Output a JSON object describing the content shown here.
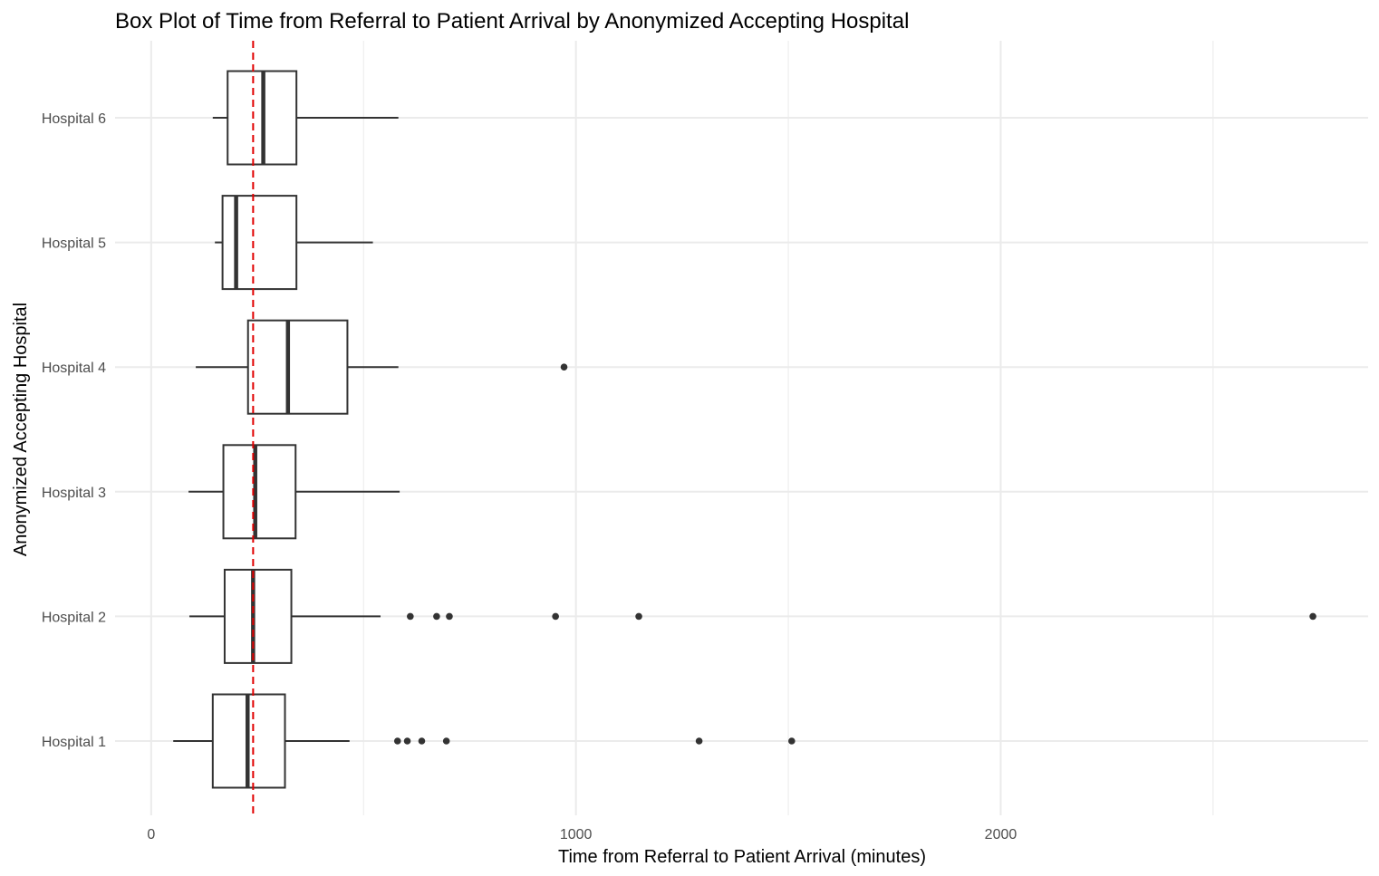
{
  "chart_data": {
    "type": "boxplot",
    "orientation": "horizontal",
    "title": "Box Plot of Time from Referral to Patient Arrival by Anonymized Accepting Hospital",
    "xlabel": "Time from Referral to Patient Arrival (minutes)",
    "ylabel": "Anonymized Accepting Hospital",
    "xlim": [
      -85,
      2865
    ],
    "x_ticks": [
      0,
      1000,
      2000
    ],
    "x_tick_labels": [
      "0",
      "1000",
      "2000"
    ],
    "grid": true,
    "reference_line": {
      "x": 240,
      "color": "#e00000",
      "style": "dashed"
    },
    "categories": [
      "Hospital 1",
      "Hospital 2",
      "Hospital 3",
      "Hospital 4",
      "Hospital 5",
      "Hospital 6"
    ],
    "boxes": [
      {
        "name": "Hospital 1",
        "whisker_low": 52,
        "q1": 145,
        "median": 227,
        "q3": 315,
        "whisker_high": 467,
        "outliers": [
          580,
          603,
          637,
          695,
          1290,
          1508
        ]
      },
      {
        "name": "Hospital 2",
        "whisker_low": 90,
        "q1": 173,
        "median": 240,
        "q3": 330,
        "whisker_high": 540,
        "outliers": [
          610,
          672,
          702,
          952,
          1148,
          2735
        ]
      },
      {
        "name": "Hospital 3",
        "whisker_low": 88,
        "q1": 170,
        "median": 245,
        "q3": 340,
        "whisker_high": 585,
        "outliers": []
      },
      {
        "name": "Hospital 4",
        "whisker_low": 105,
        "q1": 228,
        "median": 322,
        "q3": 462,
        "whisker_high": 582,
        "outliers": [
          972
        ]
      },
      {
        "name": "Hospital 5",
        "whisker_low": 150,
        "q1": 168,
        "median": 200,
        "q3": 342,
        "whisker_high": 522,
        "outliers": []
      },
      {
        "name": "Hospital 6",
        "whisker_low": 145,
        "q1": 180,
        "median": 264,
        "q3": 342,
        "whisker_high": 582,
        "outliers": []
      }
    ],
    "colors": {
      "box_stroke": "#333333",
      "box_fill": "#ffffff",
      "grid": "#ebebeb",
      "outlier": "#333333"
    }
  }
}
